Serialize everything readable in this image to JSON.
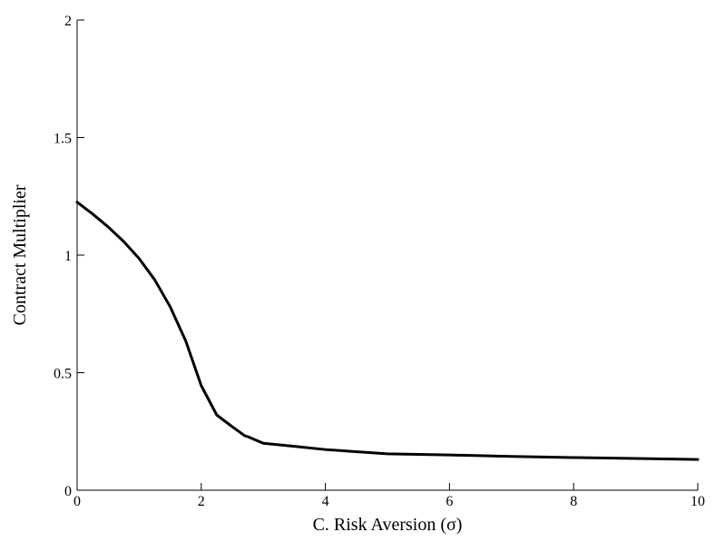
{
  "chart_data": {
    "type": "line",
    "title": "",
    "xlabel": "C. Risk Aversion (σ)",
    "ylabel": "Contract Multiplier",
    "xlim": [
      0,
      10
    ],
    "ylim": [
      0,
      2
    ],
    "x_ticks": [
      0,
      2,
      4,
      6,
      8,
      10
    ],
    "x_tick_labels": [
      "0",
      "2",
      "4",
      "6",
      "8",
      "10"
    ],
    "y_ticks": [
      0,
      0.5,
      1,
      1.5,
      2
    ],
    "y_tick_labels": [
      "0",
      "0.5",
      "1",
      "1.5",
      "2"
    ],
    "grid": false,
    "series": [
      {
        "color": "#000000",
        "x": [
          0,
          0.25,
          0.5,
          0.75,
          1.0,
          1.25,
          1.5,
          1.75,
          2.0,
          2.25,
          2.5,
          2.7,
          2.75,
          3.0,
          3.5,
          4.0,
          5.0,
          6.0,
          7.0,
          8.0,
          9.0,
          10.0
        ],
        "y": [
          1.225,
          1.175,
          1.12,
          1.058,
          0.985,
          0.895,
          0.78,
          0.635,
          0.445,
          0.32,
          0.27,
          0.232,
          0.228,
          0.2,
          0.187,
          0.173,
          0.155,
          0.15,
          0.144,
          0.139,
          0.135,
          0.131
        ]
      }
    ]
  }
}
